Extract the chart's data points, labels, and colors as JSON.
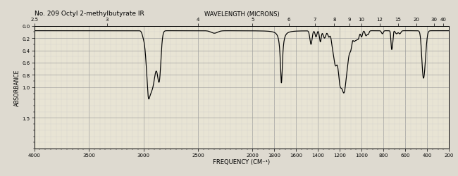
{
  "title": "No. 209 Octyl 2-methylbutyrate IR",
  "wavelength_label": "WAVELENGTH (MICRONS)",
  "freq_label": "FREQUENCY (CM⁻¹)",
  "absorbance_label": "ABSORBANCE",
  "bg_color": "#e8e4d4",
  "line_color": "#000000",
  "grid_major_color": "#999999",
  "grid_minor_color": "#cccccc",
  "fig_bg": "#dedad0",
  "microns_labels": [
    2.5,
    3,
    4,
    5,
    6,
    7,
    8,
    9,
    10,
    12,
    15,
    20,
    30,
    40
  ],
  "x_major_ticks": [
    4000,
    3500,
    3000,
    2500,
    2000,
    1800,
    1600,
    1400,
    1200,
    1000,
    800,
    600,
    400,
    200
  ],
  "y_ticks": [
    0.0,
    0.2,
    0.4,
    0.6,
    0.8,
    1.0,
    1.5
  ],
  "y_tick_labels": [
    "0.0",
    "0.2",
    "0.4",
    "0.6",
    "0.8",
    "1.0",
    "1.5"
  ]
}
